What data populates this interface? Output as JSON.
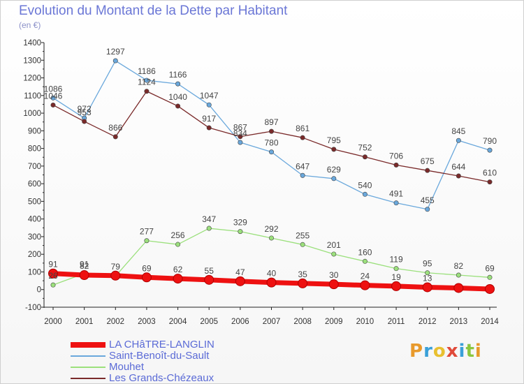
{
  "chart_data": {
    "type": "line",
    "title": "Evolution du Montant de la Dette par Habitant",
    "subtitle": "(en €)",
    "xlabel": "",
    "ylabel": "",
    "ylim": [
      -100,
      1400
    ],
    "yticks": [
      -100,
      0,
      100,
      200,
      300,
      400,
      500,
      600,
      700,
      800,
      900,
      1000,
      1100,
      1200,
      1300,
      1400
    ],
    "x": [
      "2000",
      "2001",
      "2002",
      "2003",
      "2004",
      "2005",
      "2006",
      "2007",
      "2008",
      "2009",
      "2010",
      "2011",
      "2012",
      "2013",
      "2014"
    ],
    "grid": false,
    "legend_position": "bottom-left",
    "series": [
      {
        "name": "LA CHâTRE-LANGLIN",
        "color": "#ee1111",
        "values": [
          91,
          82,
          79,
          69,
          62,
          55,
          47,
          40,
          35,
          30,
          24,
          19,
          13,
          9,
          3
        ],
        "labels": [
          "91",
          "82",
          "79",
          "69",
          "62",
          "55",
          "47",
          "40",
          "35",
          "30",
          "24",
          "19",
          "13",
          "",
          ""
        ]
      },
      {
        "name": "Saint-Benoît-du-Sault",
        "color": "#6aa8dc",
        "values": [
          1086,
          972,
          1297,
          1186,
          1166,
          1047,
          834,
          780,
          647,
          629,
          540,
          491,
          455,
          845,
          790
        ],
        "labels": [
          "1086",
          "972",
          "1297",
          "1186",
          "1166",
          "1047",
          "834",
          "780",
          "647",
          "629",
          "540",
          "491",
          "455",
          "845",
          "790"
        ]
      },
      {
        "name": "Mouhet",
        "color": "#9be07c",
        "values": [
          26,
          91,
          76,
          277,
          256,
          347,
          329,
          292,
          255,
          201,
          160,
          119,
          95,
          82,
          69
        ],
        "labels": [
          "26",
          "91",
          "",
          "277",
          "256",
          "347",
          "329",
          "292",
          "255",
          "201",
          "160",
          "119",
          "95",
          "82",
          "69"
        ]
      },
      {
        "name": "Les Grands-Chézeaux",
        "color": "#7a2a2a",
        "values": [
          1046,
          953,
          866,
          1124,
          1040,
          917,
          867,
          897,
          861,
          795,
          752,
          706,
          675,
          644,
          610
        ],
        "labels": [
          "1046",
          "953",
          "866",
          "1124",
          "1040",
          "917",
          "867",
          "897",
          "861",
          "795",
          "752",
          "706",
          "675",
          "644",
          "610"
        ]
      }
    ]
  },
  "branding": {
    "logo_letters": [
      "P",
      "r",
      "o",
      "x",
      "i",
      "t",
      "i"
    ],
    "logo_colors": [
      "#e89a2c",
      "#3aa0d8",
      "#e8c030",
      "#e04a3a",
      "#3aa0d8",
      "#8cc63f",
      "#e89a2c"
    ]
  }
}
